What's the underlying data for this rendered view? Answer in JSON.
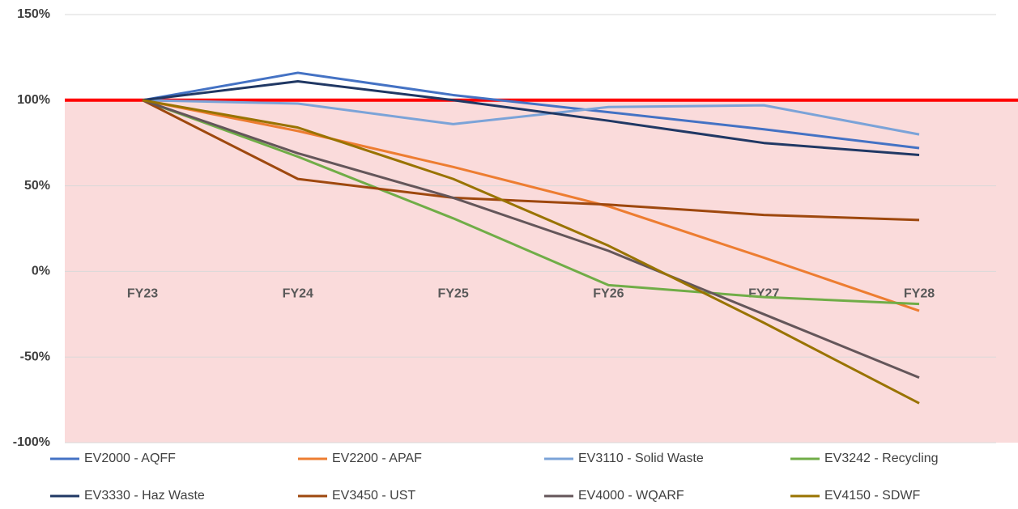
{
  "chart_data": {
    "type": "line",
    "categories": [
      "FY23",
      "FY24",
      "FY25",
      "FY26",
      "FY27",
      "FY28"
    ],
    "series": [
      {
        "name": "EV2000 - AQFF",
        "color": "#4472c4",
        "values": [
          100,
          116,
          103,
          93,
          83,
          72
        ]
      },
      {
        "name": "EV2200 - APAF",
        "color": "#ed7d31",
        "values": [
          100,
          82,
          61,
          38,
          8,
          -23
        ]
      },
      {
        "name": "EV3110 - Solid Waste",
        "color": "#7ba3d8",
        "values": [
          100,
          98,
          86,
          96,
          97,
          80
        ]
      },
      {
        "name": "EV3242 - Recycling",
        "color": "#70ad47",
        "values": [
          100,
          67,
          31,
          -8,
          -15,
          -19
        ]
      },
      {
        "name": "EV3330 - Haz Waste",
        "color": "#203864",
        "values": [
          100,
          111,
          100,
          88,
          75,
          68
        ]
      },
      {
        "name": "EV3450 - UST",
        "color": "#9e480e",
        "values": [
          100,
          54,
          43,
          39,
          33,
          30
        ]
      },
      {
        "name": "EV4000 - WQARF",
        "color": "#64565a",
        "values": [
          100,
          69,
          43,
          12,
          -25,
          -62
        ]
      },
      {
        "name": "EV4150 - SDWF",
        "color": "#997300",
        "values": [
          100,
          84,
          54,
          15,
          -30,
          -77
        ]
      }
    ],
    "ylim": [
      -100,
      150
    ],
    "yticks": [
      {
        "value": -100,
        "label": "-100%"
      },
      {
        "value": -50,
        "label": "-50%"
      },
      {
        "value": 0,
        "label": "0%"
      },
      {
        "value": 50,
        "label": "50%"
      },
      {
        "value": 100,
        "label": "100%"
      },
      {
        "value": 150,
        "label": "150%"
      }
    ],
    "grid": true,
    "reference_line": {
      "value": 100,
      "color": "#ff0000"
    },
    "shade_below_reference": "#fadbdb",
    "legend": "bottom"
  }
}
